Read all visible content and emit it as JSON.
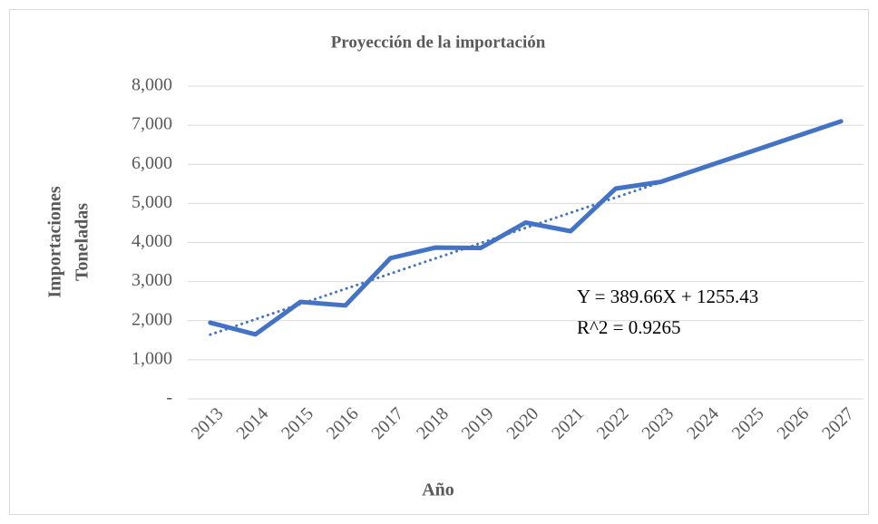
{
  "chart_data": {
    "type": "line",
    "title": "Proyección de la importación",
    "x_label": "Año",
    "y_label": [
      "Importaciones",
      "Toneladas"
    ],
    "categories": [
      "2013",
      "2014",
      "2015",
      "2016",
      "2017",
      "2018",
      "2019",
      "2020",
      "2021",
      "2022",
      "2023",
      "2024",
      "2025",
      "2026",
      "2027"
    ],
    "series": [
      {
        "color": "#4472c4",
        "values": [
          1950,
          1650,
          2480,
          2390,
          3600,
          3870,
          3860,
          4510,
          4290,
          5380,
          5550,
          5938,
          6325,
          6713,
          7100
        ]
      }
    ],
    "trendline": {
      "color": "#4472c4",
      "values": [
        1645,
        2035,
        2425,
        2814,
        3204,
        3594,
        3983,
        4373,
        4762,
        5152,
        5542,
        null,
        null,
        null,
        null
      ]
    },
    "annotations": [
      "Y = 389.66X + 1255.43",
      "R^2 = 0.9265"
    ],
    "ylim": [
      0,
      8000
    ],
    "yticks": [
      {
        "value": 0,
        "label": "-"
      },
      {
        "value": 1000,
        "label": "1,000"
      },
      {
        "value": 2000,
        "label": "2,000"
      },
      {
        "value": 3000,
        "label": "3,000"
      },
      {
        "value": 4000,
        "label": "4,000"
      },
      {
        "value": 5000,
        "label": "5,000"
      },
      {
        "value": 6000,
        "label": "6,000"
      },
      {
        "value": 7000,
        "label": "7,000"
      },
      {
        "value": 8000,
        "label": "8,000"
      }
    ],
    "grid": true
  }
}
